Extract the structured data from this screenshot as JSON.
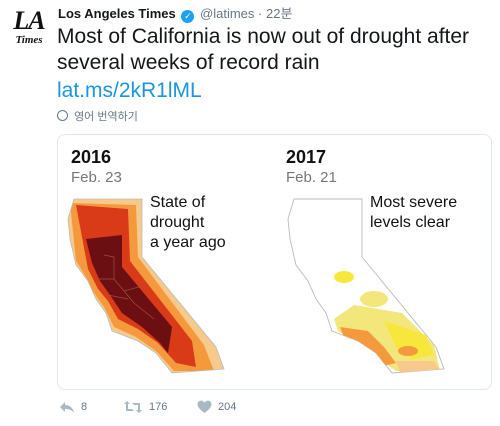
{
  "account": {
    "avatar_top": "LA",
    "avatar_bottom": "Times",
    "name": "Los Angeles Times",
    "verified_glyph": "✓",
    "handle": "@latimes",
    "separator": "·",
    "time": "22분"
  },
  "tweet": {
    "text": "Most of California is now out of drought after several weeks of record rain",
    "link": "lat.ms/2kR1lML",
    "translate_label": "영어 번역하기"
  },
  "card": {
    "left": {
      "year": "2016",
      "date": "Feb. 23",
      "headline_lines": [
        "State of",
        "drought",
        "a year ago"
      ]
    },
    "right": {
      "year": "2017",
      "date": "Feb. 21",
      "headline_lines": [
        "Most severe",
        "levels clear"
      ]
    }
  },
  "actions": {
    "reply_count": "8",
    "retweet_count": "176",
    "like_count": "204"
  },
  "colors": {
    "link": "#1b95e0",
    "muted": "#657786",
    "drought_exceptional": "#6b0f12",
    "drought_extreme": "#d93b18",
    "drought_severe": "#f59a3c",
    "drought_moderate": "#f6c98c",
    "abnormally_dry": "#f3e67a",
    "abnormally_dry_bright": "#f7e73c"
  }
}
